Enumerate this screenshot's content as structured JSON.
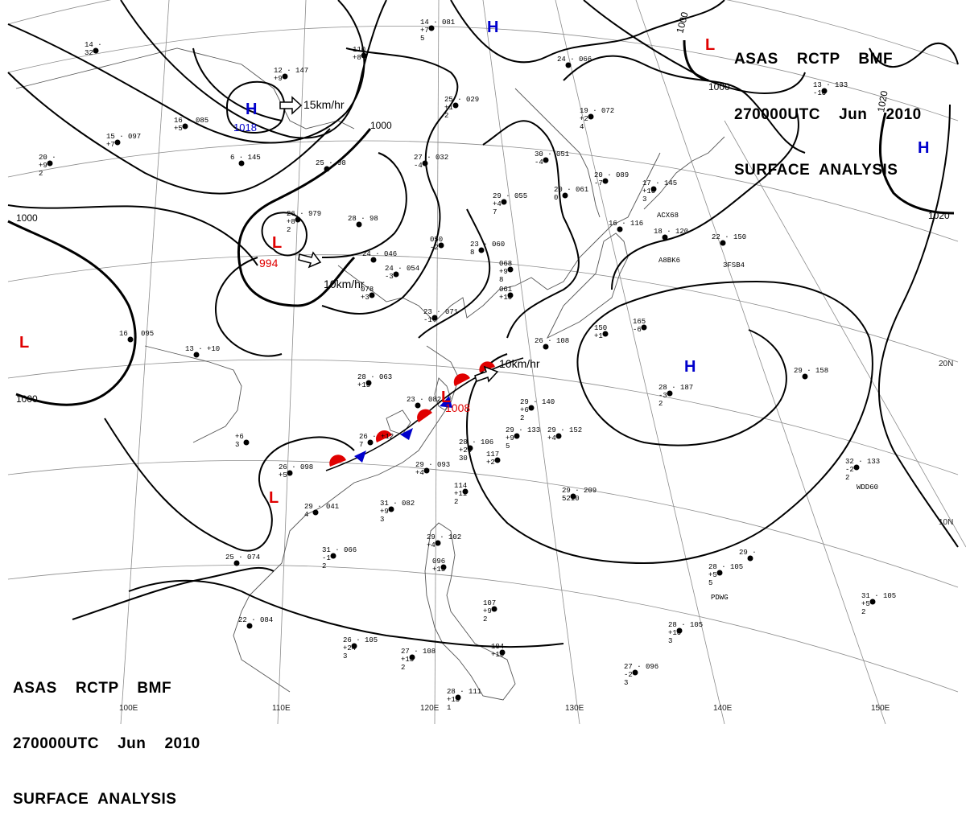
{
  "header": {
    "line1": "ASAS    RCTP    BMF",
    "line2": "270000UTC    Jun    2010",
    "line3": "SURFACE  ANALYSIS"
  },
  "grid_labels": {
    "lon_110": "110E",
    "lon_120": "120E",
    "lon_130": "130E",
    "lon_140": "140E",
    "lon_150": "150E",
    "lon_100": "100E",
    "lat_20": "20N",
    "lat_10": "10N"
  },
  "isobars": {
    "i1000_a": "1000",
    "i1000_b": "1000",
    "i1000_c": "1000",
    "i1000_d": "1000",
    "i1000_e": "1000",
    "i1020_a": "1020",
    "i1020_b": "1020"
  },
  "systems": {
    "h_north": {
      "letter": "H",
      "pressure": "1018"
    },
    "h_top": {
      "letter": "H"
    },
    "h_east": {
      "letter": "H"
    },
    "h_pacific": {
      "letter": "H"
    },
    "l_north": {
      "letter": "L",
      "pressure": "994"
    },
    "l_front": {
      "letter": "L",
      "pressure": "1008"
    },
    "l_west": {
      "letter": "L"
    },
    "l_south": {
      "letter": "L"
    },
    "l_corner": {
      "letter": "L"
    }
  },
  "motions": {
    "h_north": "15km/hr",
    "l_north": "10km/hr",
    "l_front": "10km/hr"
  },
  "stations": [
    {
      "name": "st-01",
      "lines": [
        "14 ·",
        "   32"
      ]
    },
    {
      "name": "st-02",
      "lines": [
        "14 · 081",
        "   +7",
        "   5"
      ]
    },
    {
      "name": "st-03",
      "lines": [
        "   110",
        "   +8"
      ]
    },
    {
      "name": "st-04",
      "lines": [
        "12 · 147",
        "   +9"
      ]
    },
    {
      "name": "st-05",
      "lines": [
        "16 · 085",
        "   +5"
      ]
    },
    {
      "name": "st-06",
      "lines": [
        "15 · 097",
        "   +7"
      ]
    },
    {
      "name": "st-07",
      "lines": [
        "20 ·",
        "   +9",
        "   2"
      ]
    },
    {
      "name": "st-08",
      "lines": [
        "6 · 145"
      ]
    },
    {
      "name": "st-09",
      "lines": [
        "25 · 98"
      ]
    },
    {
      "name": "st-10",
      "lines": [
        "26 · 979",
        "   +8",
        "   2"
      ]
    },
    {
      "name": "st-11",
      "lines": [
        "28 · 98"
      ]
    },
    {
      "name": "st-12",
      "lines": [
        "25 · 029",
        "   +1",
        "   2"
      ]
    },
    {
      "name": "st-13",
      "lines": [
        "27 · 032",
        "   -4"
      ]
    },
    {
      "name": "st-14",
      "lines": [
        "24 · 046"
      ]
    },
    {
      "name": "st-15",
      "lines": [
        "24 · 054",
        "   -3"
      ]
    },
    {
      "name": "st-16",
      "lines": [
        "   078",
        "   +3"
      ]
    },
    {
      "name": "st-17",
      "lines": [
        "   050",
        "   -2"
      ]
    },
    {
      "name": "st-18",
      "lines": [
        "23 · 060",
        "   8"
      ]
    },
    {
      "name": "st-19",
      "lines": [
        "29 · 055",
        "   +4",
        "   7"
      ]
    },
    {
      "name": "st-20",
      "lines": [
        "30 · 051",
        "   -4"
      ]
    },
    {
      "name": "st-21",
      "lines": [
        "20 · 061",
        "   0"
      ]
    },
    {
      "name": "st-22",
      "lines": [
        "24 · 066"
      ]
    },
    {
      "name": "st-23",
      "lines": [
        "19 · 072",
        "   +2",
        "   4"
      ]
    },
    {
      "name": "st-24",
      "lines": [
        "20 · 089",
        "   -7"
      ]
    },
    {
      "name": "st-25",
      "lines": [
        "17 · 145",
        "   +10",
        "   3"
      ]
    },
    {
      "name": "st-26",
      "lines": [
        "   068",
        "   +9",
        "   8"
      ]
    },
    {
      "name": "st-27",
      "lines": [
        "   061",
        "   +10"
      ]
    },
    {
      "name": "st-28",
      "lines": [
        "23 · 071",
        "   -1"
      ]
    },
    {
      "name": "st-29",
      "lines": [
        "16 · 116"
      ]
    },
    {
      "name": "st-30",
      "lines": [
        "18 · 120"
      ]
    },
    {
      "name": "st-31",
      "lines": [
        "22 · 150"
      ]
    },
    {
      "name": "st-32",
      "lines": [
        "13 · 133",
        "   -10"
      ]
    },
    {
      "name": "st-33",
      "lines": [
        "16 · 095"
      ]
    },
    {
      "name": "st-34",
      "lines": [
        "13 · +10"
      ]
    },
    {
      "name": "st-35",
      "lines": [
        "28 · 063",
        "   +15"
      ]
    },
    {
      "name": "st-36",
      "lines": [
        "23 · 082"
      ]
    },
    {
      "name": "st-37",
      "lines": [
        "26 · +12",
        "   7"
      ]
    },
    {
      "name": "st-38",
      "lines": [
        "28 · 106",
        "   +20",
        "   30"
      ]
    },
    {
      "name": "st-39",
      "lines": [
        "   +6",
        "   3"
      ]
    },
    {
      "name": "st-40",
      "lines": [
        "26 · 098",
        "   +5"
      ]
    },
    {
      "name": "st-41",
      "lines": [
        "29 · 041",
        "   4"
      ]
    },
    {
      "name": "st-42",
      "lines": [
        "31 · 066",
        "   -1",
        "   2"
      ]
    },
    {
      "name": "st-43",
      "lines": [
        "25 · 074"
      ]
    },
    {
      "name": "st-44",
      "lines": [
        "31 · 082",
        "   +9",
        "   3"
      ]
    },
    {
      "name": "st-45",
      "lines": [
        "29 · 093",
        "   +4"
      ]
    },
    {
      "name": "st-46",
      "lines": [
        "   114",
        "   +11",
        "   2"
      ]
    },
    {
      "name": "st-47",
      "lines": [
        "   117",
        "   +2"
      ]
    },
    {
      "name": "st-48",
      "lines": [
        "29 · 140",
        "   +6",
        "   2"
      ]
    },
    {
      "name": "st-49",
      "lines": [
        "29 · 133",
        "   +9",
        "   5"
      ]
    },
    {
      "name": "st-50",
      "lines": [
        "29 · 152",
        "   +4"
      ]
    },
    {
      "name": "st-51",
      "lines": [
        "26 · 108"
      ]
    },
    {
      "name": "st-52",
      "lines": [
        "   150",
        "   +1"
      ]
    },
    {
      "name": "st-53",
      "lines": [
        "   165",
        "   -6"
      ]
    },
    {
      "name": "st-54",
      "lines": [
        "28 · 187",
        "   -3",
        "   2"
      ]
    },
    {
      "name": "st-55",
      "lines": [
        "29 · 158"
      ]
    },
    {
      "name": "st-56",
      "lines": [
        "29 · 209",
        "   5210"
      ]
    },
    {
      "name": "st-57",
      "lines": [
        "32 · 133",
        "   -2",
        "   2"
      ]
    },
    {
      "name": "st-58",
      "lines": [
        "29 · 102",
        "   +4"
      ]
    },
    {
      "name": "st-59",
      "lines": [
        "   096",
        "   +13"
      ]
    },
    {
      "name": "st-60",
      "lines": [
        "   107",
        "   +9",
        "   2"
      ]
    },
    {
      "name": "st-61",
      "lines": [
        "27 · 108",
        "   +13",
        "   2"
      ]
    },
    {
      "name": "st-62",
      "lines": [
        "26 · 105",
        "   +24",
        "   3"
      ]
    },
    {
      "name": "st-63",
      "lines": [
        "   104",
        "   +16"
      ]
    },
    {
      "name": "st-64",
      "lines": [
        "28 · 111",
        "   +13",
        "   1"
      ]
    },
    {
      "name": "st-65",
      "lines": [
        "22 · 084"
      ]
    },
    {
      "name": "st-66",
      "lines": [
        "28 · 105",
        "   +5",
        "   5"
      ]
    },
    {
      "name": "st-67",
      "lines": [
        "29 ·"
      ]
    },
    {
      "name": "st-68",
      "lines": [
        "28 · 105",
        "   +10",
        "   3"
      ]
    },
    {
      "name": "st-69",
      "lines": [
        "27 · 096",
        "   -2",
        "   3"
      ]
    },
    {
      "name": "st-70",
      "lines": [
        "31 · 105",
        "   +5",
        "   2"
      ]
    }
  ],
  "ship_ids": {
    "s1": "ACX68",
    "s2": "A8BK6",
    "s3": "3FSB4",
    "s4": "WDD60",
    "s5": "PDWG"
  },
  "colors": {
    "high": "#0000cc",
    "low": "#e00000",
    "warm_front": "#e00000",
    "cold_front": "#0000cc",
    "isobar": "#000000",
    "grid": "#8c8c8c",
    "coast": "#555555"
  }
}
